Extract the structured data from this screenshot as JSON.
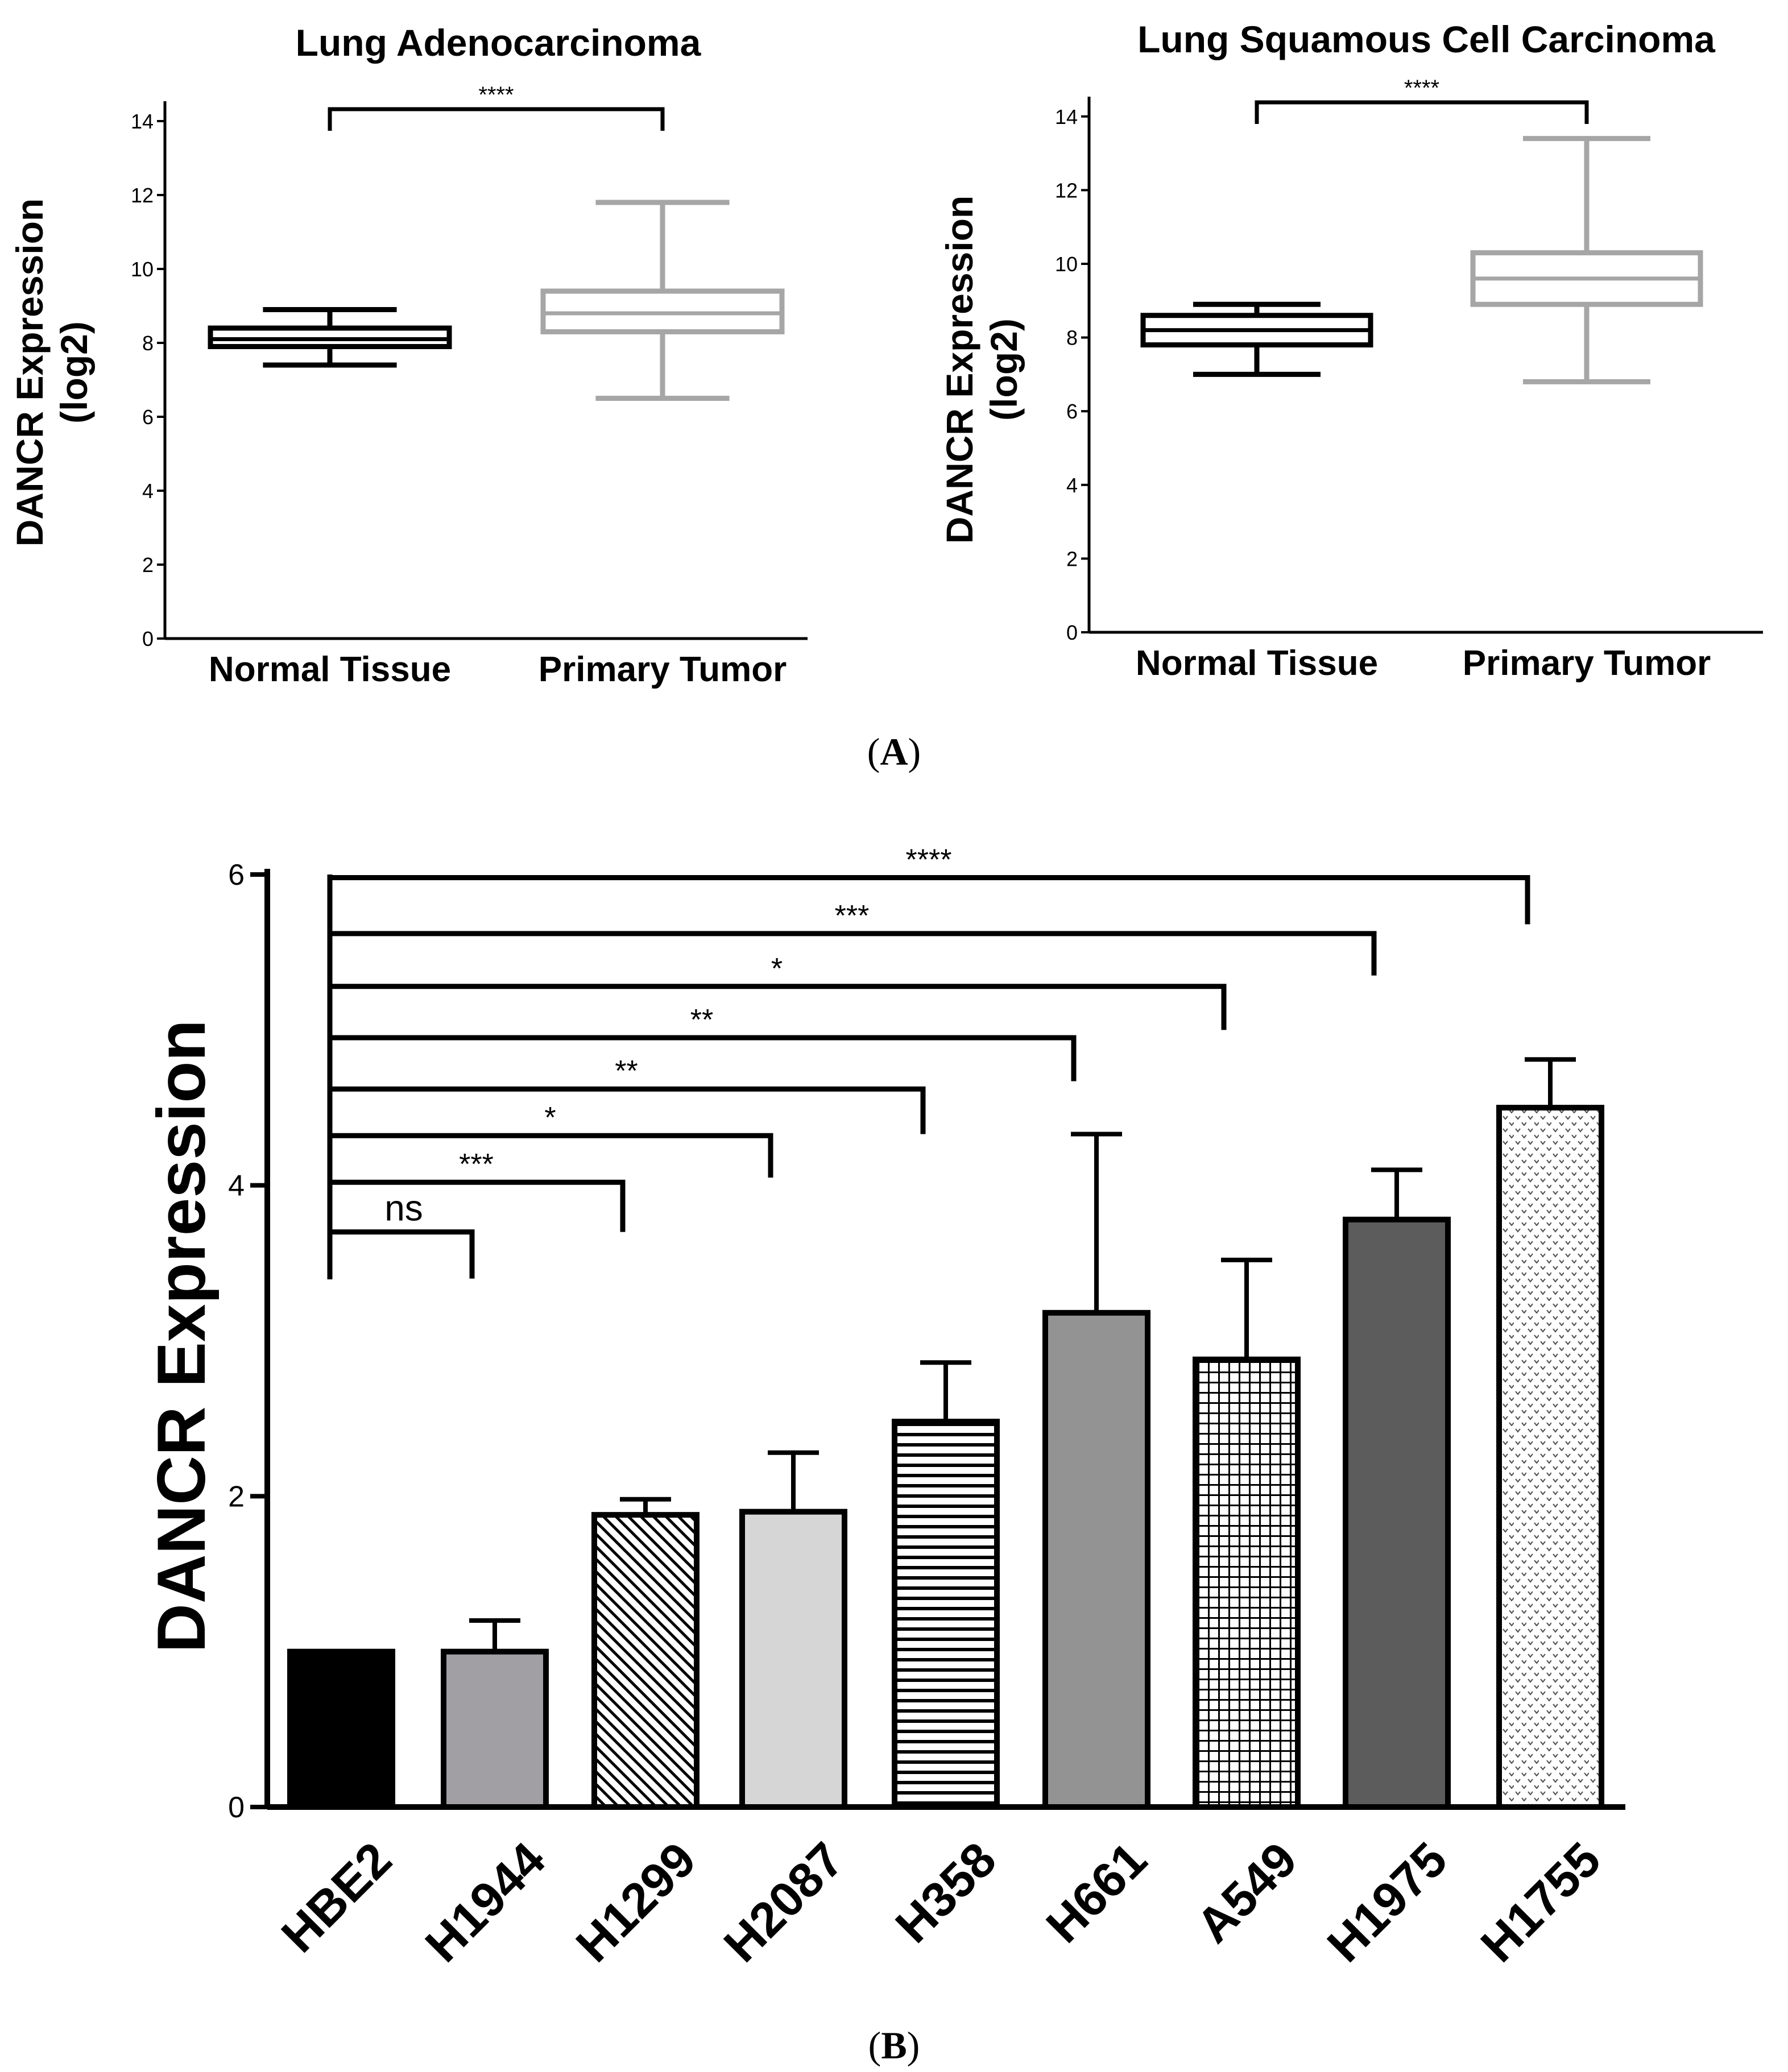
{
  "panel_labels": {
    "a_open": "(",
    "a_letter": "A",
    "a_close": ")",
    "b_open": "(",
    "b_letter": "B",
    "b_close": ")"
  },
  "chart_data": [
    {
      "id": "panel-a-left",
      "type": "box",
      "title": "Lung Adenocarcinoma",
      "ylabel_line1": "DANCR Expression",
      "ylabel_line2": "(log2)",
      "ylim": [
        0,
        15
      ],
      "yticks": [
        0,
        2,
        4,
        6,
        8,
        10,
        12,
        14
      ],
      "categories": [
        "Normal Tissue",
        "Primary Tumor"
      ],
      "boxes": [
        {
          "name": "Normal Tissue",
          "min": 7.4,
          "q1": 7.9,
          "median": 8.1,
          "q3": 8.4,
          "max": 8.9,
          "color": "#000000"
        },
        {
          "name": "Primary Tumor",
          "min": 6.5,
          "q1": 8.3,
          "median": 8.8,
          "q3": 9.4,
          "max": 11.8,
          "color": "#a6a6a6"
        }
      ],
      "significance": "****"
    },
    {
      "id": "panel-a-right",
      "type": "box",
      "title": "Lung Squamous Cell Carcinoma",
      "ylabel_line1": "DANCR Expression",
      "ylabel_line2": "(log2)",
      "ylim": [
        0,
        15
      ],
      "yticks": [
        0,
        2,
        4,
        6,
        8,
        10,
        12,
        14
      ],
      "categories": [
        "Normal Tissue",
        "Primary Tumor"
      ],
      "boxes": [
        {
          "name": "Normal Tissue",
          "min": 7.0,
          "q1": 7.8,
          "median": 8.2,
          "q3": 8.6,
          "max": 8.9,
          "color": "#000000"
        },
        {
          "name": "Primary Tumor",
          "min": 6.8,
          "q1": 8.9,
          "median": 9.6,
          "q3": 10.3,
          "max": 13.4,
          "color": "#a6a6a6"
        }
      ],
      "significance": "****"
    },
    {
      "id": "panel-b",
      "type": "bar",
      "ylabel": "DANCR Expression",
      "ylim": [
        0,
        6
      ],
      "yticks": [
        0,
        2,
        4,
        6
      ],
      "categories": [
        "HBE2",
        "H1944",
        "H1299",
        "H2087",
        "H358",
        "H661",
        "A549",
        "H1975",
        "H1755"
      ],
      "values": [
        1.0,
        1.0,
        1.88,
        1.9,
        2.48,
        3.18,
        2.88,
        3.78,
        4.5
      ],
      "errors": [
        0,
        0.2,
        0.1,
        0.38,
        0.38,
        1.15,
        0.64,
        0.32,
        0.31
      ],
      "fills": [
        "#000000",
        "#a19fa4",
        "diagonal",
        "#d6d6d6",
        "horizontal",
        "#939393",
        "grid",
        "#5c5c5c",
        "dots"
      ],
      "comparisons": [
        {
          "target": "H1944",
          "label": "ns"
        },
        {
          "target": "H1299",
          "label": "***"
        },
        {
          "target": "H2087",
          "label": "*"
        },
        {
          "target": "H358",
          "label": "**"
        },
        {
          "target": "H661",
          "label": "**"
        },
        {
          "target": "A549",
          "label": "*"
        },
        {
          "target": "H1975",
          "label": "***"
        },
        {
          "target": "H1755",
          "label": "****"
        }
      ]
    }
  ]
}
